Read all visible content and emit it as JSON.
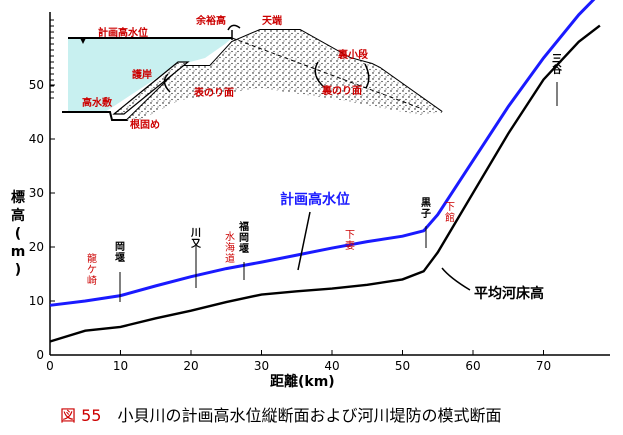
{
  "chart_data": {
    "type": "line",
    "title": "",
    "xlabel": "距離(km)",
    "ylabel": "標高(m)",
    "xlim": [
      0,
      80
    ],
    "ylim": [
      0,
      60
    ],
    "x_ticks": [
      "0",
      "10",
      "20",
      "30",
      "40",
      "50",
      "60",
      "70"
    ],
    "y_ticks": [
      "0",
      "10",
      "20",
      "30",
      "40",
      "50"
    ],
    "series": [
      {
        "name": "計画高水位",
        "color": "#1a1aff",
        "x": [
          0,
          5,
          10,
          15,
          20,
          25,
          30,
          35,
          40,
          45,
          50,
          53,
          55,
          60,
          65,
          70,
          75,
          78
        ],
        "y": [
          9.2,
          10,
          11,
          12.8,
          14.5,
          16,
          17.2,
          18.5,
          19.8,
          21,
          22,
          23,
          26,
          36,
          46,
          55,
          63,
          67
        ]
      },
      {
        "name": "平均河床高",
        "color": "#000000",
        "x": [
          0,
          5,
          10,
          15,
          20,
          25,
          30,
          35,
          40,
          45,
          50,
          53,
          55,
          60,
          65,
          70,
          75,
          78
        ],
        "y": [
          2.5,
          4.5,
          5.2,
          6.8,
          8.2,
          9.8,
          11.2,
          11.8,
          12.3,
          13,
          14,
          15.5,
          19,
          30,
          41,
          51,
          58,
          61
        ]
      }
    ]
  },
  "dike_diagram": {
    "hwl_label": "計画高水位",
    "freeboard_label": "余裕高",
    "crown_label": "天端",
    "revetment_label": "護岸",
    "high_water_bed_label": "高水敷",
    "front_slope_label": "表のり面",
    "back_berm_label": "裏小段",
    "back_slope_label": "裏のり面",
    "root_fixing_label": "根固め"
  },
  "annotations": {
    "mitani": "三谷",
    "kurogo": "黒子",
    "shimodate": "下館",
    "shimotsuma": "下妻",
    "fukuoka_weir": "福岡堰",
    "suikaido": "水海道",
    "kawamata": "川又",
    "okaseki": "岡堰",
    "ryugasaki": "龍ケ崎",
    "hwl_series": "計画高水位",
    "bed_series": "平均河床高"
  },
  "caption": {
    "number": "図 55",
    "text": "小貝川の計画高水位縦断面および河川堤防の模式断面"
  }
}
